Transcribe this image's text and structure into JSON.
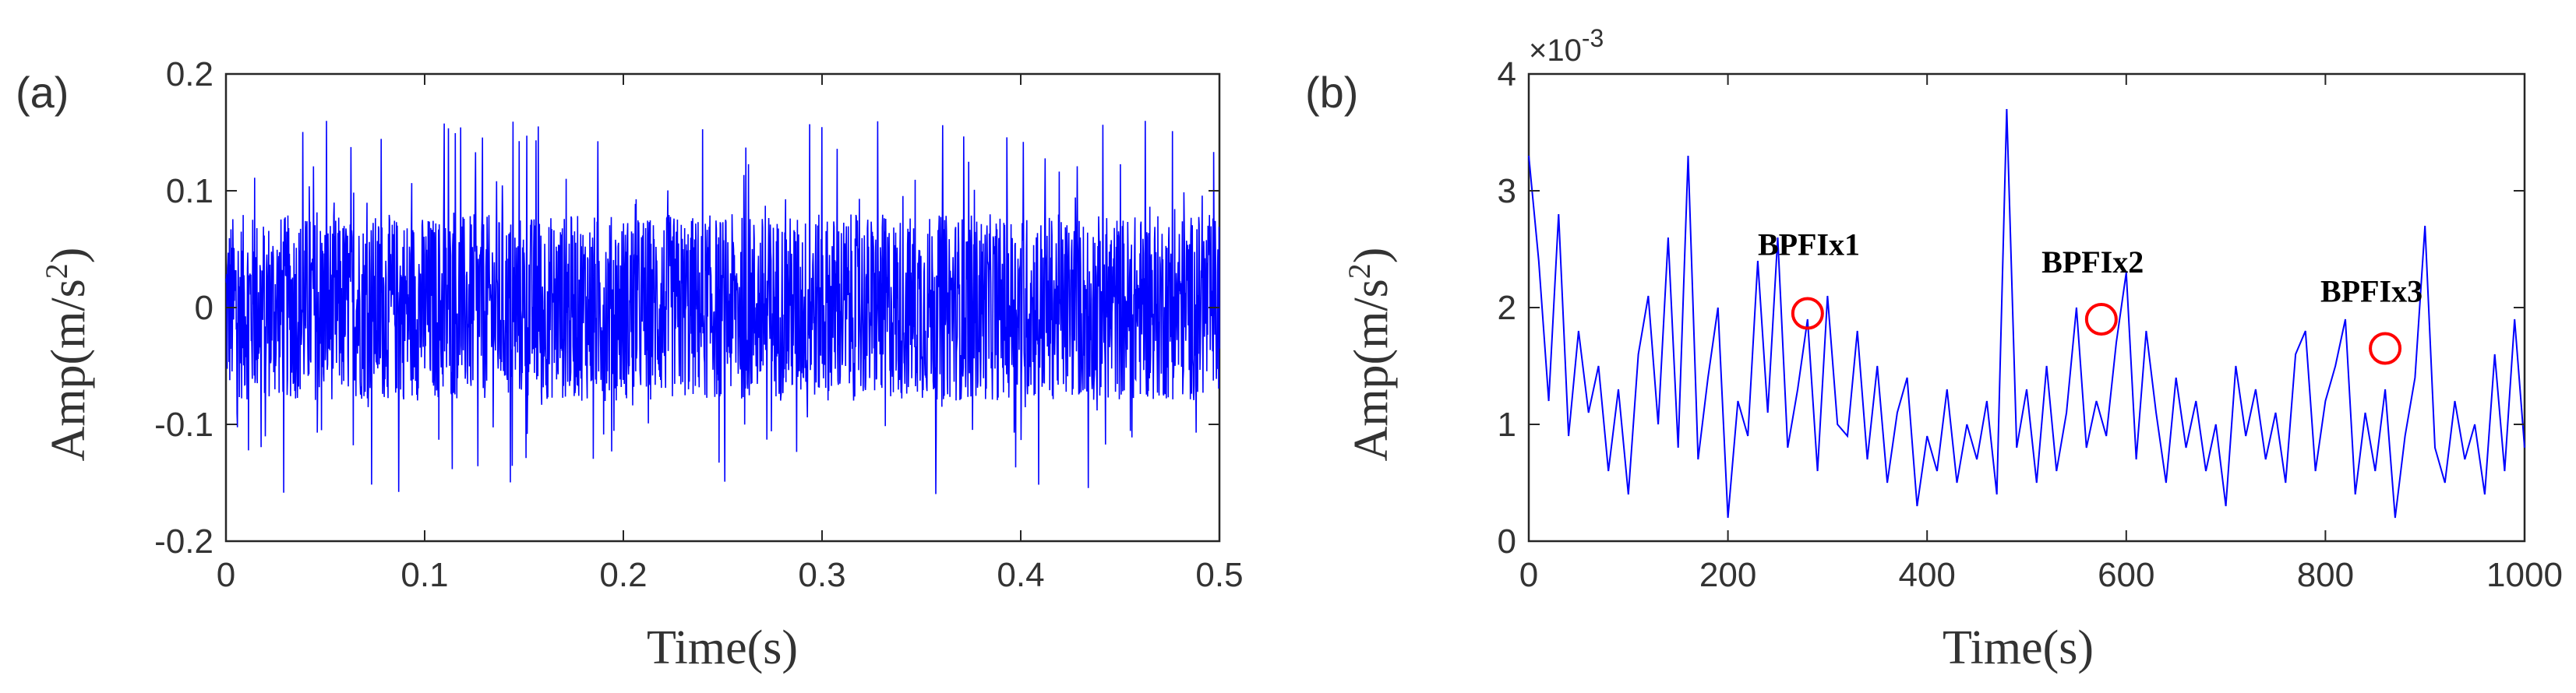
{
  "chart_data": [
    {
      "panel_label": "(a)",
      "type": "line",
      "xlabel": "Time(s)",
      "ylabel_prefix": "Amp(m/s",
      "ylabel_sup": "2",
      "ylabel_suffix": ")",
      "xlim": [
        0,
        0.5
      ],
      "ylim": [
        -0.2,
        0.2
      ],
      "xticks": [
        0,
        0.1,
        0.2,
        0.3,
        0.4,
        0.5
      ],
      "xtick_labels": [
        "0",
        "0.1",
        "0.2",
        "0.3",
        "0.4",
        "0.5"
      ],
      "yticks": [
        -0.2,
        -0.1,
        0,
        0.1,
        0.2
      ],
      "ytick_labels": [
        "-0.2",
        "-0.1",
        "0",
        "0.1",
        "0.2"
      ],
      "grid": false,
      "series": [
        {
          "color": "#0000ff",
          "description_of_signal": "dense vibration noise, mostly within about ±0.08, peaks near ±0.16",
          "envelope": {
            "typical_abs": 0.08,
            "peak_abs": 0.16
          },
          "x_range": [
            0,
            0.5
          ]
        }
      ]
    },
    {
      "panel_label": "(b)",
      "type": "line",
      "xlabel": "Time(s)",
      "ylabel_prefix": "Amp(m/s",
      "ylabel_sup": "2",
      "ylabel_suffix": ")",
      "xlim": [
        0,
        1000
      ],
      "ylim": [
        0,
        4
      ],
      "y_exponent_label": "×10",
      "y_exponent_power": "-3",
      "xticks": [
        0,
        200,
        400,
        600,
        800,
        1000
      ],
      "xtick_labels": [
        "0",
        "200",
        "400",
        "600",
        "800",
        "1000"
      ],
      "yticks": [
        0,
        1,
        2,
        3,
        4
      ],
      "ytick_labels": [
        "0",
        "1",
        "2",
        "3",
        "4"
      ],
      "grid": false,
      "series": [
        {
          "color": "#0000ff",
          "x": [
            0,
            10,
            20,
            30,
            40,
            50,
            60,
            70,
            80,
            90,
            100,
            110,
            120,
            130,
            140,
            150,
            160,
            170,
            180,
            190,
            200,
            210,
            220,
            230,
            240,
            250,
            260,
            270,
            280,
            290,
            300,
            310,
            320,
            330,
            340,
            350,
            360,
            370,
            380,
            390,
            400,
            410,
            420,
            430,
            440,
            450,
            460,
            470,
            480,
            490,
            500,
            510,
            520,
            530,
            540,
            550,
            560,
            570,
            580,
            590,
            600,
            610,
            620,
            630,
            640,
            650,
            660,
            670,
            680,
            690,
            700,
            710,
            720,
            730,
            740,
            750,
            760,
            770,
            780,
            790,
            800,
            810,
            820,
            830,
            840,
            850,
            860,
            870,
            880,
            890,
            900,
            910,
            920,
            930,
            940,
            950,
            960,
            970,
            980,
            990,
            1000
          ],
          "y": [
            3.3,
            2.4,
            1.2,
            2.8,
            0.9,
            1.8,
            1.1,
            1.5,
            0.6,
            1.3,
            0.4,
            1.6,
            2.1,
            1.0,
            2.6,
            0.8,
            3.3,
            0.7,
            1.4,
            2.0,
            0.2,
            1.2,
            0.9,
            2.4,
            1.1,
            2.6,
            0.8,
            1.3,
            1.9,
            0.6,
            2.1,
            1.0,
            0.9,
            1.8,
            0.7,
            1.5,
            0.5,
            1.1,
            1.4,
            0.3,
            0.9,
            0.6,
            1.3,
            0.5,
            1.0,
            0.7,
            1.2,
            0.4,
            3.7,
            0.8,
            1.3,
            0.5,
            1.5,
            0.6,
            1.1,
            2.0,
            0.8,
            1.2,
            0.9,
            1.7,
            2.3,
            0.7,
            1.8,
            1.1,
            0.5,
            1.4,
            0.8,
            1.2,
            0.6,
            1.0,
            0.3,
            1.5,
            0.9,
            1.3,
            0.7,
            1.1,
            0.5,
            1.6,
            1.8,
            0.6,
            1.2,
            1.5,
            1.9,
            0.4,
            1.1,
            0.6,
            1.3,
            0.2,
            0.9,
            1.4,
            2.7,
            0.8,
            0.5,
            1.2,
            0.7,
            1.0,
            0.4,
            1.6,
            0.6,
            1.9,
            0.8
          ]
        }
      ],
      "annotations": [
        {
          "text": "BPFIx1",
          "x": 280,
          "y": 1.95,
          "text_x": 230,
          "text_y": 2.45
        },
        {
          "text": "BPFIx2",
          "x": 575,
          "y": 1.9,
          "text_x": 515,
          "text_y": 2.3
        },
        {
          "text": "BPFIx3",
          "x": 860,
          "y": 1.65,
          "text_x": 795,
          "text_y": 2.05
        }
      ],
      "marker_color": "#ff0000"
    }
  ]
}
